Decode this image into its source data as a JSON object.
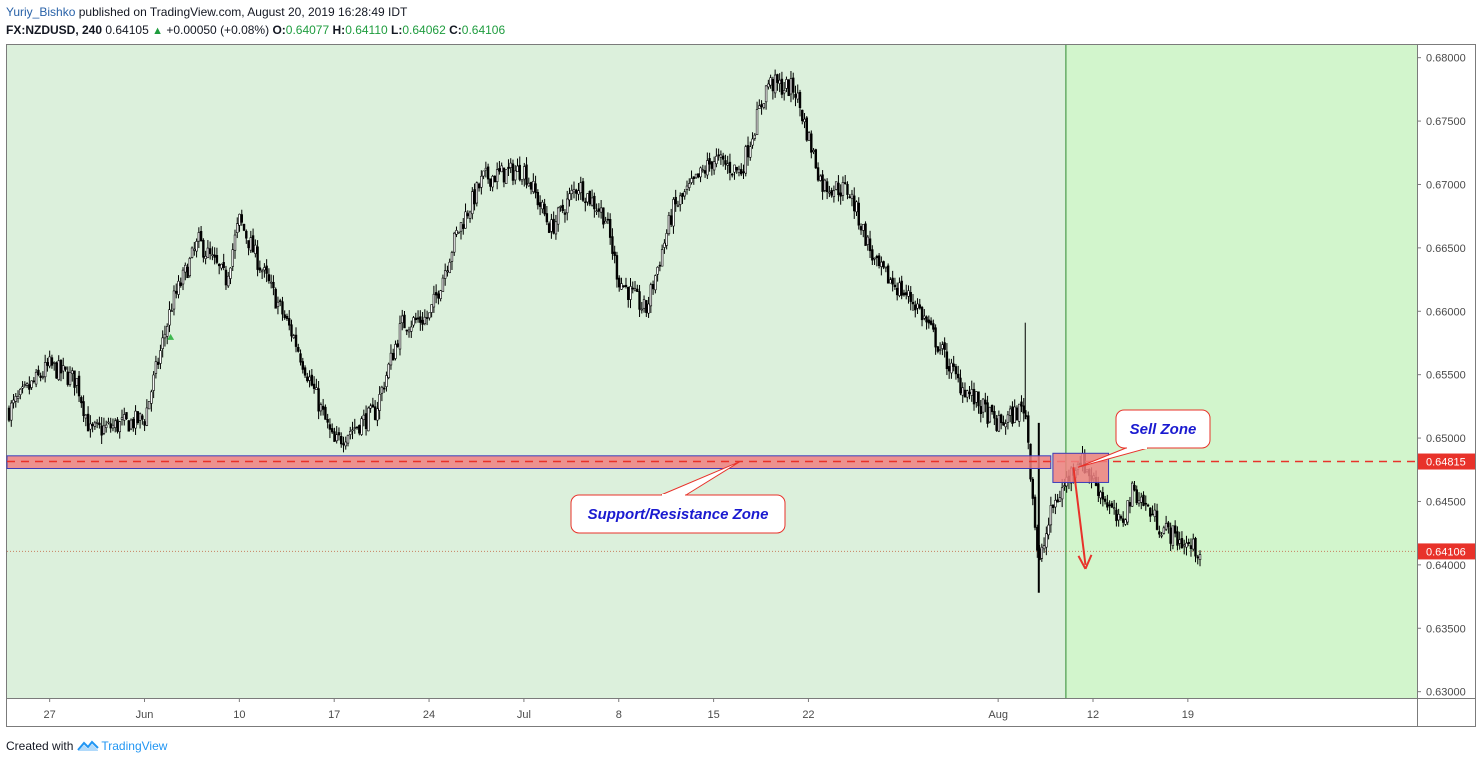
{
  "header": {
    "author": "Yuriy_Bishko",
    "published_text": "published on TradingView.com, August 20, 2019 16:28:49 IDT",
    "symbol": "FX:NZDUSD, 240",
    "last_price": "0.64105",
    "change": "+0.00050 (+0.08%)",
    "open_label": "O:",
    "open": "0.64077",
    "high_label": "H:",
    "high": "0.64110",
    "low_label": "L:",
    "low": "0.64062",
    "close_label": "C:",
    "close": "0.64106"
  },
  "footer": {
    "created_with": "Created with",
    "brand": "TradingView"
  },
  "colors": {
    "background_zone": "#dcf0dc",
    "future_zone": "#d2f5cc",
    "candle": "#000000",
    "sr_zone_fill": "#f08080",
    "sr_zone_border": "#3b3bb8",
    "dashed_line": "#e8322a",
    "price_tag": "#e8322a",
    "annotation_text": "#1a1ad0",
    "arrow": "#e8322a"
  },
  "chart_data": {
    "type": "candlestick",
    "title": "",
    "ylim": [
      0.6295,
      0.681
    ],
    "y_ticks": [
      "0.68000",
      "0.67500",
      "0.67000",
      "0.66500",
      "0.66000",
      "0.65500",
      "0.65000",
      "0.64500",
      "0.64000",
      "0.63500",
      "0.63000"
    ],
    "y_tick_values": [
      0.68,
      0.675,
      0.67,
      0.665,
      0.66,
      0.655,
      0.65,
      0.645,
      0.64,
      0.635,
      0.63
    ],
    "x_ticks": [
      "27",
      "Jun",
      "10",
      "17",
      "24",
      "Jul",
      "8",
      "15",
      "22",
      "Aug",
      "12",
      "19"
    ],
    "x_tick_dates": [
      "2019-05-27",
      "2019-06-03",
      "2019-06-10",
      "2019-06-17",
      "2019-06-24",
      "2019-07-01",
      "2019-07-08",
      "2019-07-15",
      "2019-07-22",
      "2019-08-05",
      "2019-08-12",
      "2019-08-19"
    ],
    "price_path": [
      [
        "2019-05-24",
        0.6522
      ],
      [
        "2019-05-27",
        0.6557
      ],
      [
        "2019-05-29",
        0.6545
      ],
      [
        "2019-05-30",
        0.6505
      ],
      [
        "2019-06-03",
        0.6515
      ],
      [
        "2019-06-05",
        0.6605
      ],
      [
        "2019-06-07",
        0.6655
      ],
      [
        "2019-06-09",
        0.6625
      ],
      [
        "2019-06-10",
        0.6672
      ],
      [
        "2019-06-12",
        0.6625
      ],
      [
        "2019-06-14",
        0.658
      ],
      [
        "2019-06-17",
        0.6495
      ],
      [
        "2019-06-18",
        0.6505
      ],
      [
        "2019-06-20",
        0.652
      ],
      [
        "2019-06-22",
        0.659
      ],
      [
        "2019-06-24",
        0.6595
      ],
      [
        "2019-06-26",
        0.666
      ],
      [
        "2019-06-28",
        0.6705
      ],
      [
        "2019-07-01",
        0.6712
      ],
      [
        "2019-07-03",
        0.6665
      ],
      [
        "2019-07-05",
        0.67
      ],
      [
        "2019-07-07",
        0.6675
      ],
      [
        "2019-07-08",
        0.6625
      ],
      [
        "2019-07-10",
        0.66
      ],
      [
        "2019-07-12",
        0.668
      ],
      [
        "2019-07-15",
        0.672
      ],
      [
        "2019-07-17",
        0.671
      ],
      [
        "2019-07-18",
        0.6745
      ],
      [
        "2019-07-19",
        0.678
      ],
      [
        "2019-07-21",
        0.6775
      ],
      [
        "2019-07-23",
        0.67
      ],
      [
        "2019-07-25",
        0.6695
      ],
      [
        "2019-07-27",
        0.6635
      ],
      [
        "2019-07-30",
        0.6605
      ],
      [
        "2019-08-02",
        0.6545
      ],
      [
        "2019-08-05",
        0.651
      ],
      [
        "2019-08-07",
        0.6525
      ],
      [
        "2019-08-08",
        0.6398
      ],
      [
        "2019-08-09",
        0.6445
      ],
      [
        "2019-08-11",
        0.6485
      ],
      [
        "2019-08-13",
        0.645
      ],
      [
        "2019-08-14",
        0.643
      ],
      [
        "2019-08-15",
        0.646
      ],
      [
        "2019-08-17",
        0.643
      ],
      [
        "2019-08-19",
        0.6415
      ],
      [
        "2019-08-20",
        0.64106
      ]
    ],
    "support_resistance_zone": {
      "label": "Support/Resistance Zone",
      "low": 0.6476,
      "high": 0.6486,
      "level": 0.64815,
      "level_label": "0.64815"
    },
    "sell_zone": {
      "label": "Sell Zone",
      "start": "2019-08-10",
      "end": "2019-08-13",
      "low": 0.6465,
      "high": 0.6488
    },
    "current_price": 0.64106,
    "current_price_label": "0.64106",
    "marker_date": "2019-08-10"
  }
}
